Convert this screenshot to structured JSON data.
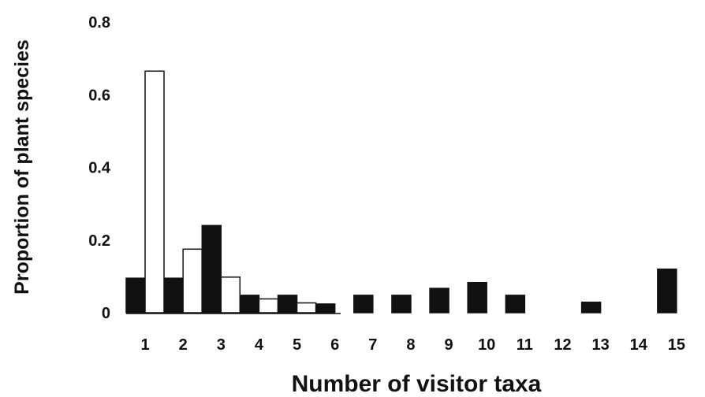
{
  "chart_data": {
    "type": "bar",
    "title": "",
    "xlabel": "Number of visitor taxa",
    "ylabel": "Proportion of plant species",
    "categories": [
      "1",
      "2",
      "3",
      "4",
      "5",
      "6",
      "7",
      "8",
      "9",
      "10",
      "11",
      "12",
      "13",
      "14",
      "15"
    ],
    "series": [
      {
        "color": "#111111",
        "values": [
          0.095,
          0.095,
          0.24,
          0.048,
          0.048,
          0.024,
          0.048,
          0.048,
          0.067,
          0.083,
          0.048,
          0,
          0.029,
          0,
          0.12
        ]
      },
      {
        "color": "#ffffff",
        "values": [
          0.665,
          0.175,
          0.098,
          0.038,
          0.027,
          0,
          0,
          0,
          0,
          0,
          0,
          0,
          0,
          0,
          0
        ]
      }
    ],
    "ylim": [
      0,
      0.8
    ],
    "yticks": [
      "0",
      "0.2",
      "0.4",
      "0.6",
      "0.8"
    ],
    "ytick_values": [
      0,
      0.2,
      0.4,
      0.6,
      0.8
    ],
    "grid": false,
    "legend": "none"
  }
}
